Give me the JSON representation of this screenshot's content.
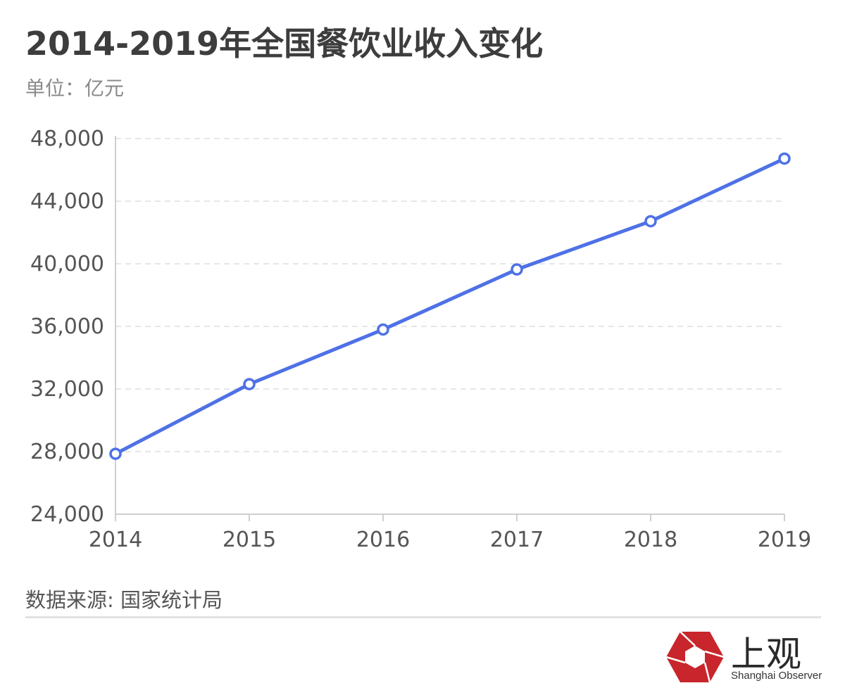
{
  "header": {
    "title": "2014-2019年全国餐饮业收入变化",
    "subtitle": "单位：亿元"
  },
  "chart_data": {
    "type": "line",
    "x": [
      "2014",
      "2015",
      "2016",
      "2017",
      "2018",
      "2019"
    ],
    "series": [
      {
        "values": [
          27860,
          32310,
          35800,
          39640,
          42720,
          46720
        ]
      }
    ],
    "ylim": [
      24000,
      48000
    ],
    "yticks": [
      24000,
      28000,
      32000,
      36000,
      40000,
      44000,
      48000
    ],
    "ytick_labels": [
      "24,000",
      "28,000",
      "32,000",
      "36,000",
      "40,000",
      "44,000",
      "48,000"
    ],
    "grid": true,
    "line_color": "#4e71e6",
    "xlabel": "",
    "ylabel": ""
  },
  "footer": {
    "source": "数据来源: 国家统计局",
    "logo_cn": "上观",
    "logo_en": "Shanghai Observer",
    "logo_color": "#c8262c"
  }
}
